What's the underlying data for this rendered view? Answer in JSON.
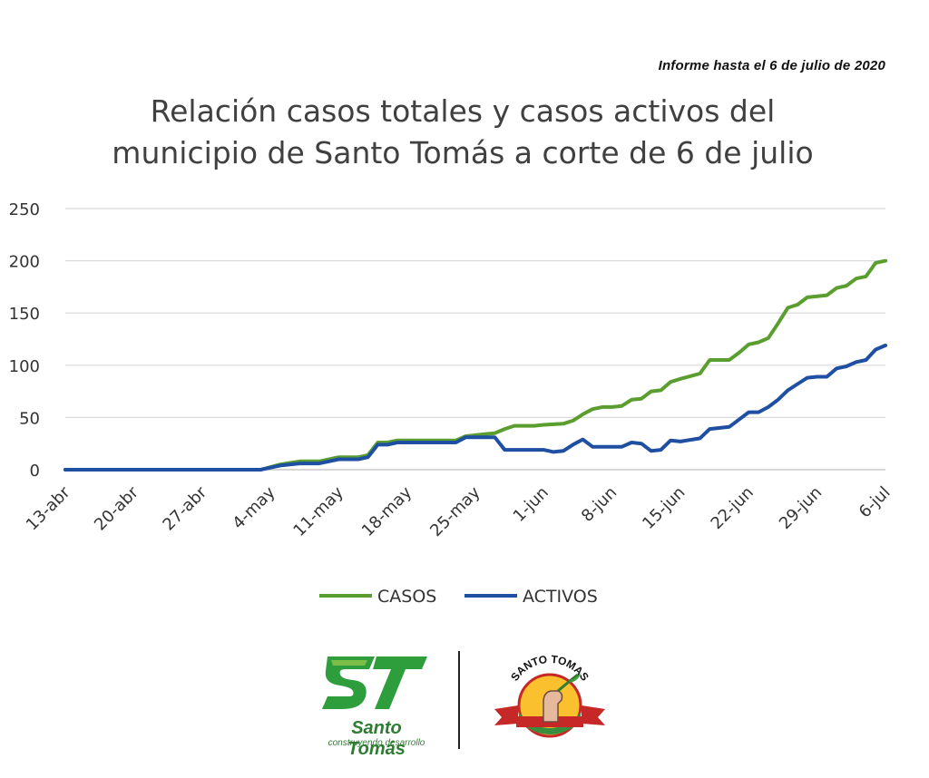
{
  "header": {
    "report_note": "Informe hasta el 6 de julio de 2020"
  },
  "chart_data": {
    "type": "line",
    "title_lines": [
      "Relación casos totales y casos activos del",
      "municipio de Santo Tomás a corte de 6 de julio"
    ],
    "xlabel": "",
    "ylabel": "",
    "ylim": [
      0,
      250
    ],
    "yticks": [
      0,
      50,
      100,
      150,
      200,
      250
    ],
    "x_range": [
      "2020-04-13",
      "2020-07-06"
    ],
    "x_tick_labels": [
      "13-abr",
      "20-abr",
      "27-abr",
      "4-may",
      "11-may",
      "18-may",
      "25-may",
      "1-jun",
      "8-jun",
      "15-jun",
      "22-jun",
      "29-jun",
      "6-jul"
    ],
    "x_ticks": [
      "2020-04-13",
      "2020-04-20",
      "2020-04-27",
      "2020-05-04",
      "2020-05-11",
      "2020-05-18",
      "2020-05-25",
      "2020-06-01",
      "2020-06-08",
      "2020-06-15",
      "2020-06-22",
      "2020-06-29",
      "2020-07-06"
    ],
    "grid": true,
    "legend_position": "bottom-center",
    "series": [
      {
        "name": "CASOS",
        "color": "#5a9e2f",
        "points": [
          [
            "2020-04-13",
            0
          ],
          [
            "2020-05-03",
            0
          ],
          [
            "2020-05-05",
            5
          ],
          [
            "2020-05-07",
            8
          ],
          [
            "2020-05-09",
            8
          ],
          [
            "2020-05-11",
            12
          ],
          [
            "2020-05-13",
            12
          ],
          [
            "2020-05-14",
            14
          ],
          [
            "2020-05-15",
            26
          ],
          [
            "2020-05-16",
            26
          ],
          [
            "2020-05-17",
            28
          ],
          [
            "2020-05-20",
            28
          ],
          [
            "2020-05-23",
            28
          ],
          [
            "2020-05-24",
            32
          ],
          [
            "2020-05-26",
            34
          ],
          [
            "2020-05-27",
            35
          ],
          [
            "2020-05-28",
            39
          ],
          [
            "2020-05-29",
            42
          ],
          [
            "2020-05-31",
            42
          ],
          [
            "2020-06-01",
            43
          ],
          [
            "2020-06-03",
            44
          ],
          [
            "2020-06-04",
            47
          ],
          [
            "2020-06-05",
            53
          ],
          [
            "2020-06-06",
            58
          ],
          [
            "2020-06-07",
            60
          ],
          [
            "2020-06-08",
            60
          ],
          [
            "2020-06-09",
            61
          ],
          [
            "2020-06-10",
            67
          ],
          [
            "2020-06-11",
            68
          ],
          [
            "2020-06-12",
            75
          ],
          [
            "2020-06-13",
            76
          ],
          [
            "2020-06-14",
            84
          ],
          [
            "2020-06-15",
            87
          ],
          [
            "2020-06-17",
            92
          ],
          [
            "2020-06-18",
            105
          ],
          [
            "2020-06-20",
            105
          ],
          [
            "2020-06-21",
            112
          ],
          [
            "2020-06-22",
            120
          ],
          [
            "2020-06-23",
            122
          ],
          [
            "2020-06-24",
            126
          ],
          [
            "2020-06-25",
            140
          ],
          [
            "2020-06-26",
            155
          ],
          [
            "2020-06-27",
            158
          ],
          [
            "2020-06-28",
            165
          ],
          [
            "2020-06-29",
            166
          ],
          [
            "2020-06-30",
            167
          ],
          [
            "2020-07-01",
            174
          ],
          [
            "2020-07-02",
            176
          ],
          [
            "2020-07-03",
            183
          ],
          [
            "2020-07-04",
            185
          ],
          [
            "2020-07-05",
            198
          ],
          [
            "2020-07-06",
            200
          ]
        ]
      },
      {
        "name": "ACTIVOS",
        "color": "#1f4fa3",
        "points": [
          [
            "2020-04-13",
            0
          ],
          [
            "2020-05-03",
            0
          ],
          [
            "2020-05-05",
            4
          ],
          [
            "2020-05-07",
            6
          ],
          [
            "2020-05-09",
            6
          ],
          [
            "2020-05-11",
            10
          ],
          [
            "2020-05-13",
            10
          ],
          [
            "2020-05-14",
            12
          ],
          [
            "2020-05-15",
            24
          ],
          [
            "2020-05-16",
            24
          ],
          [
            "2020-05-17",
            26
          ],
          [
            "2020-05-23",
            26
          ],
          [
            "2020-05-24",
            31
          ],
          [
            "2020-05-27",
            31
          ],
          [
            "2020-05-28",
            19
          ],
          [
            "2020-06-01",
            19
          ],
          [
            "2020-06-02",
            17
          ],
          [
            "2020-06-03",
            18
          ],
          [
            "2020-06-04",
            24
          ],
          [
            "2020-06-05",
            29
          ],
          [
            "2020-06-06",
            22
          ],
          [
            "2020-06-09",
            22
          ],
          [
            "2020-06-10",
            26
          ],
          [
            "2020-06-11",
            25
          ],
          [
            "2020-06-12",
            18
          ],
          [
            "2020-06-13",
            19
          ],
          [
            "2020-06-14",
            28
          ],
          [
            "2020-06-15",
            27
          ],
          [
            "2020-06-17",
            30
          ],
          [
            "2020-06-18",
            39
          ],
          [
            "2020-06-20",
            41
          ],
          [
            "2020-06-21",
            48
          ],
          [
            "2020-06-22",
            55
          ],
          [
            "2020-06-23",
            55
          ],
          [
            "2020-06-24",
            60
          ],
          [
            "2020-06-25",
            67
          ],
          [
            "2020-06-26",
            76
          ],
          [
            "2020-06-27",
            82
          ],
          [
            "2020-06-28",
            88
          ],
          [
            "2020-06-29",
            89
          ],
          [
            "2020-06-30",
            89
          ],
          [
            "2020-07-01",
            97
          ],
          [
            "2020-07-02",
            99
          ],
          [
            "2020-07-03",
            103
          ],
          [
            "2020-07-04",
            105
          ],
          [
            "2020-07-05",
            115
          ],
          [
            "2020-07-06",
            119
          ]
        ]
      }
    ]
  },
  "logos": {
    "left": {
      "name": "Santo Tomás",
      "tagline": "construyendo desarrollo",
      "colors": [
        "#2e7d32",
        "#8bc34a"
      ]
    },
    "right": {
      "ring_text": "SANTO TOMAS",
      "colors": [
        "#c62828",
        "#fbc02d",
        "#388e3c"
      ]
    }
  }
}
